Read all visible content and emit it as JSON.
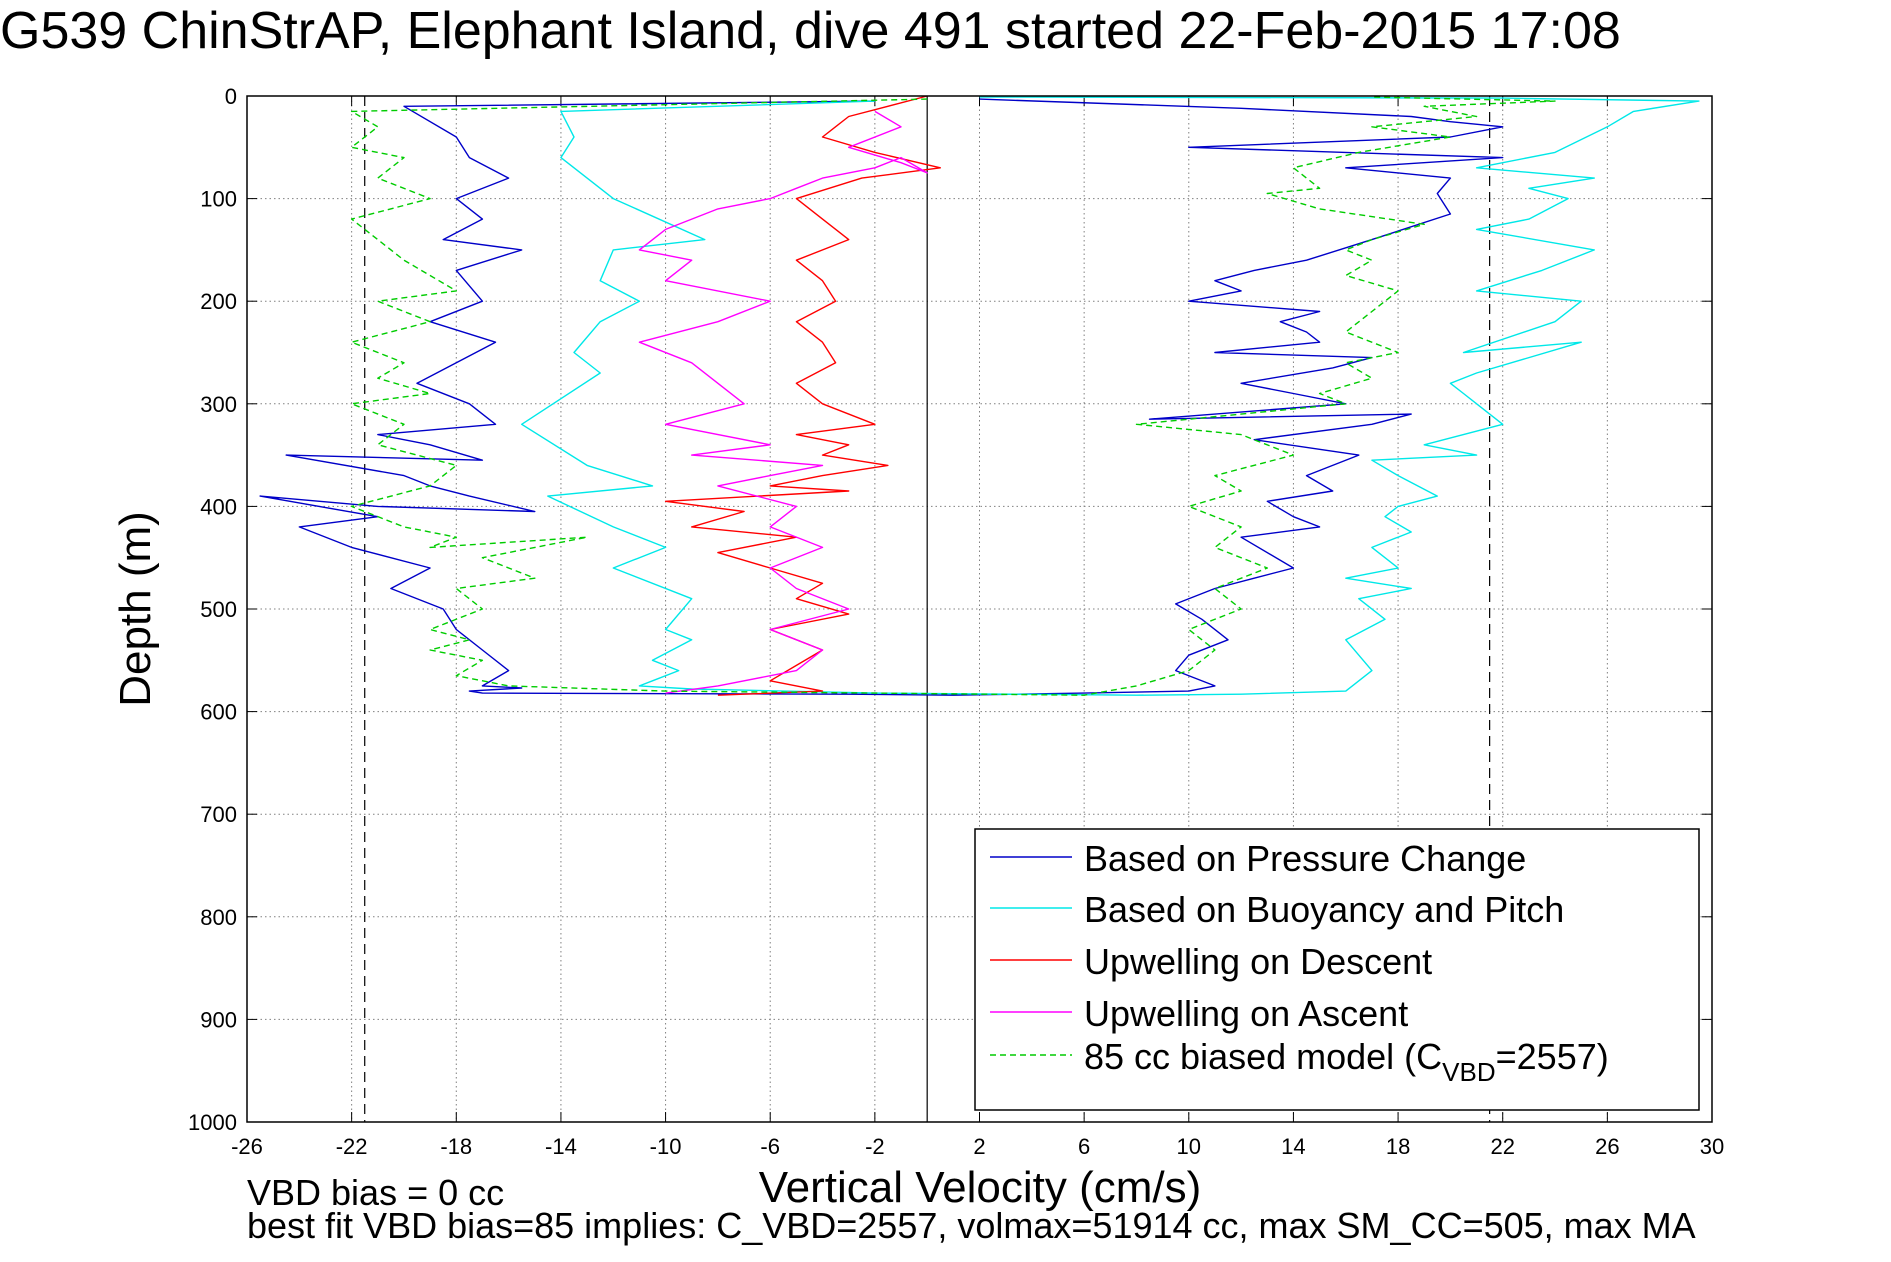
{
  "chart_data": {
    "type": "line",
    "title": "G539 ChinStrAP, Elephant Island, dive 491 started 22-Feb-2015 17:08",
    "xlabel": "Vertical Velocity (cm/s)",
    "ylabel": "Depth (m)",
    "xlim": [
      -26,
      30
    ],
    "ylim": [
      0,
      1000
    ],
    "y_reversed": true,
    "grid": true,
    "xticks": [
      -26,
      -22,
      -18,
      -14,
      -10,
      -6,
      -2,
      2,
      6,
      10,
      14,
      18,
      22,
      26,
      30
    ],
    "yticks": [
      0,
      100,
      200,
      300,
      400,
      500,
      600,
      700,
      800,
      900,
      1000
    ],
    "xtick_labels": [
      "-26",
      "-22",
      "-18",
      "-14",
      "-10",
      "-6",
      "-2",
      "2",
      "6",
      "10",
      "14",
      "18",
      "22",
      "26",
      "30"
    ],
    "ytick_labels": [
      "0",
      "100",
      "200",
      "300",
      "400",
      "500",
      "600",
      "700",
      "800",
      "900",
      "1000"
    ],
    "legend_position": "bottom-right",
    "legend_entries": [
      "Based on Pressure Change",
      "Based on Buoyancy and Pitch",
      "Upwelling on Descent",
      "Upwelling on Ascent",
      "85 cc biased model (C"
    ],
    "legend_model_sub": "VBD",
    "legend_model_tail": "=2557)",
    "reference_lines": {
      "zero_x": 0,
      "target_descent_x": -21.5,
      "target_ascent_x": 21.5
    },
    "series": [
      {
        "name": "Based on Pressure Change",
        "color": "#0000c8",
        "style": "solid",
        "x": [
          -2,
          -20,
          -18,
          -17.5,
          -16,
          -18,
          -17,
          -18.5,
          -15.5,
          -18,
          -17,
          -19,
          -16.5,
          -18,
          -19.5,
          -17.5,
          -16.5,
          -21,
          -19,
          -17,
          -24.5,
          -20,
          -19,
          -17.5,
          -15,
          -21,
          -25.5,
          -21,
          -24,
          -22,
          -19,
          -20.5,
          -18.5,
          -18,
          -17,
          -16,
          -17,
          -15.5,
          -17.5,
          -17,
          -3,
          1,
          6,
          10,
          11,
          9.5,
          10,
          11.5,
          10.5,
          9.5,
          11,
          12.5,
          14,
          12,
          15,
          14,
          13,
          15.5,
          14.5,
          16.5,
          12.5,
          17,
          18.5,
          8.5,
          16,
          14,
          12,
          15.5,
          17,
          11,
          15,
          14.5,
          13.5,
          15,
          10,
          12,
          11,
          12.5,
          14.5,
          17,
          20,
          19.5,
          20,
          16,
          22,
          10,
          20,
          22,
          20,
          18.5,
          12,
          2
        ],
        "y": [
          5,
          10,
          40,
          60,
          80,
          100,
          120,
          140,
          150,
          170,
          200,
          220,
          240,
          260,
          280,
          300,
          320,
          330,
          340,
          355,
          350,
          370,
          380,
          390,
          405,
          400,
          390,
          410,
          420,
          440,
          460,
          480,
          500,
          520,
          540,
          560,
          575,
          577,
          580,
          582,
          583,
          584,
          582,
          580,
          575,
          560,
          545,
          530,
          510,
          495,
          480,
          470,
          460,
          430,
          420,
          410,
          395,
          385,
          370,
          350,
          335,
          320,
          310,
          315,
          300,
          290,
          280,
          265,
          255,
          250,
          240,
          230,
          220,
          210,
          200,
          190,
          180,
          170,
          160,
          140,
          115,
          95,
          80,
          70,
          60,
          50,
          40,
          30,
          25,
          20,
          12,
          3
        ]
      },
      {
        "name": "Based on Buoyancy and Pitch",
        "color": "#00e8e8",
        "style": "solid",
        "x": [
          -2,
          -14,
          -13.5,
          -14,
          -13,
          -12,
          -8.5,
          -12,
          -12.5,
          -11,
          -12.5,
          -13.5,
          -12.5,
          -15.5,
          -13,
          -10.5,
          -14.5,
          -12,
          -10,
          -12,
          -9,
          -10,
          -9,
          -10.5,
          -9.5,
          -10.5,
          -11,
          -9,
          -2,
          8,
          12,
          16,
          17,
          16,
          17.5,
          16.5,
          18.5,
          16,
          18,
          17,
          18.5,
          17.5,
          18,
          19.5,
          18,
          17,
          21,
          19,
          22,
          21,
          20.5,
          20,
          21,
          25,
          20.5,
          24,
          25,
          21,
          23.5,
          25.5,
          21,
          23,
          24.5,
          23,
          25.5,
          21,
          24,
          26,
          27,
          29.5,
          22,
          2
        ],
        "y": [
          5,
          15,
          40,
          60,
          80,
          100,
          140,
          150,
          180,
          200,
          220,
          250,
          270,
          320,
          360,
          380,
          390,
          420,
          440,
          460,
          490,
          520,
          530,
          550,
          560,
          570,
          575,
          578,
          582,
          584,
          583,
          580,
          560,
          530,
          510,
          490,
          480,
          470,
          460,
          440,
          425,
          410,
          400,
          390,
          370,
          355,
          350,
          340,
          320,
          300,
          290,
          280,
          270,
          240,
          250,
          220,
          200,
          190,
          170,
          150,
          130,
          120,
          100,
          90,
          80,
          70,
          55,
          30,
          15,
          5,
          2,
          1
        ]
      },
      {
        "name": "Upwelling on Descent",
        "color": "#ff0000",
        "style": "solid",
        "x": [
          0,
          -3,
          -4,
          -2,
          0.5,
          -2.5,
          -5,
          -4,
          -3,
          -5,
          -4,
          -3.5,
          -5,
          -4,
          -3.5,
          -5,
          -4,
          -2,
          -5,
          -3,
          -4,
          -1.5,
          -4,
          -6,
          -3,
          -10,
          -7,
          -9,
          -5,
          -8,
          -6,
          -4,
          -5,
          -3,
          -6,
          -4,
          -5,
          -6,
          -4,
          -8
        ],
        "y": [
          0,
          20,
          40,
          55,
          70,
          80,
          100,
          120,
          140,
          160,
          180,
          200,
          220,
          240,
          260,
          280,
          300,
          320,
          330,
          340,
          350,
          360,
          370,
          380,
          385,
          395,
          405,
          420,
          430,
          445,
          460,
          475,
          490,
          505,
          520,
          540,
          555,
          570,
          580,
          584
        ]
      },
      {
        "name": "Upwelling on Ascent",
        "color": "#ff00ff",
        "style": "solid",
        "x": [
          -10,
          -8,
          -5,
          -4,
          -6,
          -3,
          -5,
          -6,
          -4,
          -6,
          -5,
          -8,
          -6,
          -4,
          -9,
          -6,
          -10,
          -7,
          -8,
          -9,
          -11,
          -8,
          -6,
          -10,
          -9,
          -11,
          -10,
          -8,
          -6,
          -5,
          -4,
          -2,
          -1,
          0,
          -1,
          -3,
          -1,
          -2
        ],
        "y": [
          582,
          575,
          560,
          540,
          520,
          500,
          480,
          460,
          440,
          420,
          400,
          380,
          370,
          360,
          350,
          340,
          320,
          300,
          280,
          260,
          240,
          220,
          200,
          180,
          160,
          150,
          130,
          110,
          100,
          90,
          80,
          70,
          60,
          75,
          65,
          50,
          30,
          15
        ]
      },
      {
        "name": "85 cc biased model (CVBD=2557)",
        "color": "#00cc00",
        "style": "dashed",
        "x": [
          0,
          -22,
          -21,
          -22,
          -20,
          -21,
          -19,
          -22,
          -21,
          -20,
          -19,
          -18,
          -21,
          -19,
          -22,
          -20,
          -21,
          -19,
          -22,
          -20,
          -21,
          -18,
          -19,
          -22,
          -20,
          -18,
          -19,
          -13,
          -17,
          -15,
          -18,
          -17,
          -19,
          -17.5,
          -19,
          -17,
          -18,
          -16,
          -10,
          -2,
          6,
          8,
          10,
          11,
          10,
          12,
          11,
          13,
          11,
          12,
          10,
          12,
          11,
          14,
          12,
          8,
          12,
          16,
          15,
          17,
          16,
          18,
          16,
          17,
          18,
          16,
          17,
          16,
          17,
          19,
          15,
          13,
          15,
          14,
          16.5,
          20,
          17,
          21,
          19,
          24,
          17
        ],
        "y": [
          3,
          15,
          30,
          50,
          60,
          80,
          100,
          120,
          140,
          160,
          175,
          190,
          200,
          220,
          240,
          260,
          275,
          290,
          300,
          320,
          340,
          360,
          380,
          400,
          420,
          430,
          440,
          430,
          450,
          470,
          480,
          500,
          520,
          530,
          540,
          550,
          565,
          575,
          580,
          582,
          584,
          575,
          560,
          540,
          520,
          500,
          480,
          460,
          440,
          420,
          400,
          385,
          370,
          350,
          330,
          320,
          310,
          300,
          290,
          275,
          260,
          250,
          230,
          210,
          190,
          175,
          160,
          150,
          140,
          125,
          110,
          95,
          90,
          70,
          55,
          40,
          30,
          20,
          10,
          5,
          1
        ]
      }
    ],
    "annotations": [
      "VBD bias = 0 cc",
      "best fit VBD bias=85 implies: C_VBD=2557, volmax=51914 cc, max SM_CC=505, max MA"
    ]
  }
}
